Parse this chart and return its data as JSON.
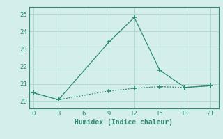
{
  "xlabel": "Humidex (Indice chaleur)",
  "x": [
    0,
    3,
    9,
    12,
    15,
    18,
    21
  ],
  "line1_y": [
    20.5,
    20.1,
    23.4,
    24.8,
    21.8,
    20.8,
    20.9
  ],
  "line2_y": [
    20.5,
    20.1,
    20.6,
    20.75,
    20.85,
    20.8,
    20.9
  ],
  "line_color": "#2e8b74",
  "bg_color": "#d4eeec",
  "grid_color": "#b0d8d4",
  "xlim": [
    -0.5,
    22
  ],
  "ylim": [
    19.6,
    25.4
  ],
  "xticks": [
    0,
    3,
    6,
    9,
    12,
    15,
    18,
    21
  ],
  "yticks": [
    20,
    21,
    22,
    23,
    24,
    25
  ],
  "marker": "+",
  "markersize": 5,
  "linewidth": 0.9
}
